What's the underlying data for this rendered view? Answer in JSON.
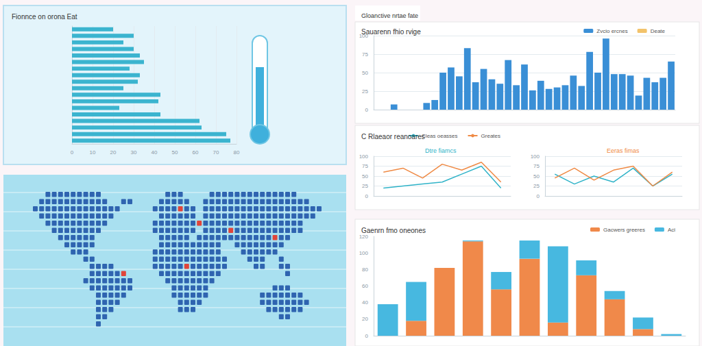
{
  "chart_data": [
    {
      "type": "bar",
      "title": "Fionnce on orona Eat",
      "orientation": "horizontal",
      "categories": [
        null,
        null,
        null,
        null,
        null,
        null,
        null,
        null,
        null,
        null,
        null,
        null,
        null,
        null,
        null,
        null,
        null,
        null
      ],
      "values": [
        20,
        30,
        25,
        30,
        33,
        35,
        28,
        33,
        32,
        25,
        43,
        42,
        23,
        43,
        62,
        63,
        75,
        77
      ],
      "color": "#3bb4cf",
      "xlim": [
        0,
        80
      ],
      "xticks": [
        0,
        10,
        20,
        30,
        40,
        50,
        60,
        70,
        80
      ],
      "grid": true,
      "tick_labels": "x"
    },
    {
      "type": "bar",
      "subtitle": "Gloanctive nrtae fate",
      "title": "Sauarenn fhio rvige",
      "categories": [
        null,
        null,
        null,
        null,
        null,
        null,
        null,
        null,
        null,
        null,
        null,
        null,
        null,
        null,
        null,
        null,
        null,
        null,
        null,
        null,
        null,
        null,
        null,
        null,
        null,
        null,
        null,
        null,
        null,
        null,
        null,
        null,
        null,
        null,
        null,
        null,
        null
      ],
      "series": [
        {
          "name": "Zvcio ercnes",
          "color": "#3a8fd6",
          "values": [
            0,
            0,
            7,
            0,
            0,
            0,
            9,
            13,
            50,
            57,
            45,
            83,
            37,
            55,
            41,
            35,
            67,
            33,
            61,
            26,
            39,
            28,
            30,
            33,
            46,
            32,
            78,
            50,
            96,
            48,
            48,
            46,
            19,
            43,
            37,
            43,
            65
          ]
        },
        {
          "name": "Deate",
          "color": "#f2c36b",
          "values": [
            null,
            null,
            null,
            null,
            null,
            null,
            null,
            null,
            null,
            null,
            null,
            null,
            null,
            null,
            null,
            null,
            null,
            null,
            null,
            null,
            null,
            null,
            null,
            null,
            null,
            null,
            null,
            null,
            null,
            null,
            null,
            null,
            null,
            null,
            null,
            null,
            null
          ]
        }
      ],
      "ylim": [
        0,
        100
      ],
      "yticks": [
        0,
        25,
        50,
        75,
        100
      ],
      "grid": true,
      "legend": "top-right",
      "tick_labels": "y"
    },
    {
      "type": "line",
      "title": "C Rlaeaor reanoares",
      "subtitle": "Dtre fiamcs",
      "categories": [
        null,
        null,
        null,
        null,
        null,
        null,
        null
      ],
      "series": [
        {
          "name": "Cleas oeasses",
          "color": "#2fb3c8",
          "values": [
            20,
            25,
            30,
            35,
            55,
            75,
            20
          ]
        },
        {
          "name": "Greates",
          "color": "#ef8a45",
          "values": [
            60,
            70,
            45,
            80,
            65,
            85,
            35
          ]
        }
      ],
      "ylim": [
        0,
        100
      ],
      "yticks": [
        0,
        25,
        50,
        75,
        100
      ],
      "grid": true,
      "legend": "top-right",
      "tick_labels": "y"
    },
    {
      "type": "line",
      "subtitle": "Eeras fimas",
      "categories": [
        null,
        null,
        null,
        null,
        null,
        null,
        null
      ],
      "series": [
        {
          "name": "Cleas oeasses",
          "color": "#2fb3c8",
          "values": [
            55,
            30,
            50,
            35,
            70,
            25,
            55
          ]
        },
        {
          "name": "Greates",
          "color": "#ef8a45",
          "values": [
            45,
            70,
            40,
            65,
            75,
            25,
            60
          ]
        }
      ],
      "ylim": [
        0,
        100
      ],
      "yticks": [
        0,
        25,
        50,
        75,
        100
      ],
      "grid": true,
      "tick_labels": "y"
    },
    {
      "type": "bar",
      "title": "Gaenrn fmo oneones",
      "stacked": true,
      "categories": [
        null,
        null,
        null,
        null,
        null,
        null,
        null,
        null,
        null,
        null,
        null
      ],
      "series": [
        {
          "name": "Gacwers greeres",
          "color": "#f0894a",
          "values": [
            0,
            18,
            82,
            114,
            56,
            93,
            16,
            73,
            44,
            8,
            0
          ]
        },
        {
          "name": "Aci",
          "color": "#47b8e0",
          "values": [
            38,
            47,
            0,
            1,
            21,
            22,
            92,
            18,
            10,
            14,
            2
          ]
        }
      ],
      "ylim": [
        0,
        120
      ],
      "yticks": [
        0,
        20,
        40,
        60,
        80,
        100,
        120
      ],
      "grid": false,
      "legend": "top-right",
      "tick_labels": "y"
    }
  ]
}
